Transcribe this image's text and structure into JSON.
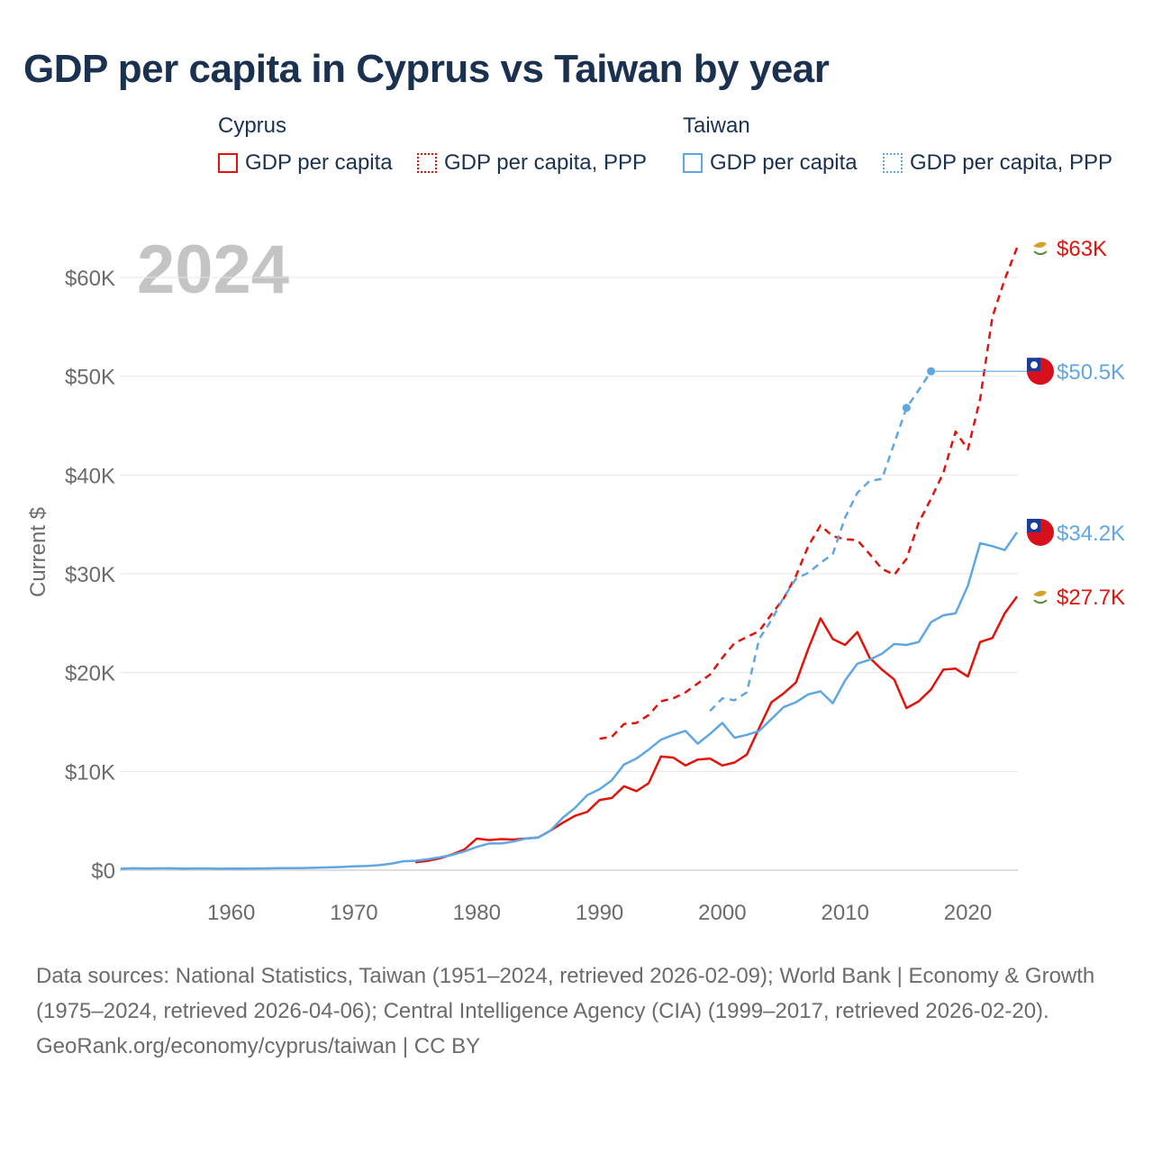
{
  "title": "GDP per capita in Cyprus vs Taiwan by year",
  "legend": {
    "cyprus": {
      "title": "Cyprus",
      "gdp": "GDP per capita",
      "ppp": "GDP per capita, PPP",
      "color": "#e3120b"
    },
    "taiwan": {
      "title": "Taiwan",
      "gdp": "GDP per capita",
      "ppp": "GDP per capita, PPP",
      "color": "#5fa6e4"
    }
  },
  "year_watermark": "2024",
  "footer": {
    "sources": "Data sources: National Statistics, Taiwan (1951–2024, retrieved 2026-02-09); World Bank | Economy & Growth (1975–2024, retrieved 2026-04-06); Central Intelligence Agency (CIA) (1999–2017, retrieved 2026-02-20).",
    "credit": "GeoRank.org/economy/cyprus/taiwan | CC BY"
  },
  "chart_data": {
    "type": "line",
    "title": "GDP per capita in Cyprus vs Taiwan by year",
    "xlabel": "",
    "ylabel": "Current $",
    "xlim": [
      1951,
      2024
    ],
    "ylim": [
      0,
      65000
    ],
    "x_ticks": [
      1960,
      1970,
      1980,
      1990,
      2000,
      2010,
      2020
    ],
    "y_ticks": [
      0,
      10000,
      20000,
      30000,
      40000,
      50000,
      60000
    ],
    "y_tick_labels": [
      "$0",
      "$10K",
      "$20K",
      "$30K",
      "$40K",
      "$50K",
      "$60K"
    ],
    "grid": true,
    "series": [
      {
        "name": "Cyprus GDP per capita",
        "country": "cyprus",
        "style": "solid",
        "color": "#e3120b",
        "end_label": "$27.7K",
        "x": [
          1975,
          1976,
          1977,
          1978,
          1979,
          1980,
          1981,
          1982,
          1983,
          1984,
          1985,
          1986,
          1987,
          1988,
          1989,
          1990,
          1991,
          1992,
          1993,
          1994,
          1995,
          1996,
          1997,
          1998,
          1999,
          2000,
          2001,
          2002,
          2003,
          2004,
          2005,
          2006,
          2007,
          2008,
          2009,
          2010,
          2011,
          2012,
          2013,
          2014,
          2015,
          2016,
          2017,
          2018,
          2019,
          2020,
          2021,
          2022,
          2023,
          2024
        ],
        "values": [
          800,
          950,
          1200,
          1600,
          2100,
          3200,
          3050,
          3150,
          3100,
          3200,
          3300,
          4000,
          4800,
          5500,
          5900,
          7100,
          7300,
          8500,
          8000,
          8800,
          11500,
          11400,
          10600,
          11200,
          11300,
          10600,
          10900,
          11700,
          14400,
          17000,
          17900,
          19000,
          22400,
          25500,
          23400,
          22800,
          24100,
          21500,
          20300,
          19300,
          16400,
          17100,
          18300,
          20300,
          20400,
          19600,
          23100,
          23500,
          26000,
          27700
        ]
      },
      {
        "name": "Cyprus GDP per capita, PPP",
        "country": "cyprus",
        "style": "dashed",
        "color": "#e3120b",
        "end_label": "$63K",
        "x": [
          1990,
          1991,
          1992,
          1993,
          1994,
          1995,
          1996,
          1997,
          1998,
          1999,
          2000,
          2001,
          2002,
          2003,
          2004,
          2005,
          2006,
          2007,
          2008,
          2009,
          2010,
          2011,
          2012,
          2013,
          2014,
          2015,
          2016,
          2017,
          2018,
          2019,
          2020,
          2021,
          2022,
          2023,
          2024
        ],
        "values": [
          13300,
          13500,
          14800,
          14900,
          15700,
          17100,
          17400,
          18000,
          18900,
          19800,
          21500,
          23000,
          23600,
          24200,
          25900,
          27500,
          29800,
          32800,
          34900,
          33800,
          33500,
          33400,
          32000,
          30500,
          29900,
          31500,
          35200,
          37600,
          40200,
          44400,
          42600,
          47700,
          56000,
          59800,
          63000
        ]
      },
      {
        "name": "Taiwan GDP per capita",
        "country": "taiwan",
        "style": "solid",
        "color": "#5fa6e4",
        "end_label": "$34.2K",
        "x": [
          1951,
          1952,
          1953,
          1954,
          1955,
          1956,
          1957,
          1958,
          1959,
          1960,
          1961,
          1962,
          1963,
          1964,
          1965,
          1966,
          1967,
          1968,
          1969,
          1970,
          1971,
          1972,
          1973,
          1974,
          1975,
          1976,
          1977,
          1978,
          1979,
          1980,
          1981,
          1982,
          1983,
          1984,
          1985,
          1986,
          1987,
          1988,
          1989,
          1990,
          1991,
          1992,
          1993,
          1994,
          1995,
          1996,
          1997,
          1998,
          1999,
          2000,
          2001,
          2002,
          2003,
          2004,
          2005,
          2006,
          2007,
          2008,
          2009,
          2010,
          2011,
          2012,
          2013,
          2014,
          2015,
          2016,
          2017,
          2018,
          2019,
          2020,
          2021,
          2022,
          2023,
          2024
        ],
        "values": [
          150,
          190,
          170,
          180,
          190,
          160,
          170,
          180,
          150,
          160,
          160,
          170,
          180,
          200,
          210,
          220,
          250,
          280,
          320,
          380,
          420,
          500,
          650,
          900,
          950,
          1100,
          1300,
          1550,
          1900,
          2350,
          2700,
          2700,
          2900,
          3200,
          3300,
          4000,
          5300,
          6300,
          7600,
          8200,
          9100,
          10700,
          11300,
          12200,
          13200,
          13700,
          14100,
          12800,
          13800,
          14900,
          13400,
          13700,
          14100,
          15300,
          16500,
          17000,
          17800,
          18100,
          16900,
          19200,
          20900,
          21300,
          21900,
          22900,
          22800,
          23100,
          25100,
          25800,
          26000,
          28800,
          33100,
          32800,
          32400,
          34200
        ]
      },
      {
        "name": "Taiwan GDP per capita, PPP",
        "country": "taiwan",
        "style": "dashed",
        "color": "#5fa6e4",
        "end_label": "$50.5K",
        "last_value_extends_to": 2024,
        "x": [
          1999,
          2000,
          2001,
          2002,
          2003,
          2004,
          2005,
          2006,
          2007,
          2008,
          2009,
          2010,
          2011,
          2012,
          2013,
          2014,
          2015,
          2016,
          2017
        ],
        "values": [
          16100,
          17400,
          17200,
          18000,
          23400,
          25300,
          27600,
          29500,
          30100,
          31100,
          32000,
          35700,
          38200,
          39400,
          39600,
          null,
          46800,
          48600,
          50500
        ],
        "markers_at": [
          2015,
          2017
        ]
      }
    ]
  }
}
